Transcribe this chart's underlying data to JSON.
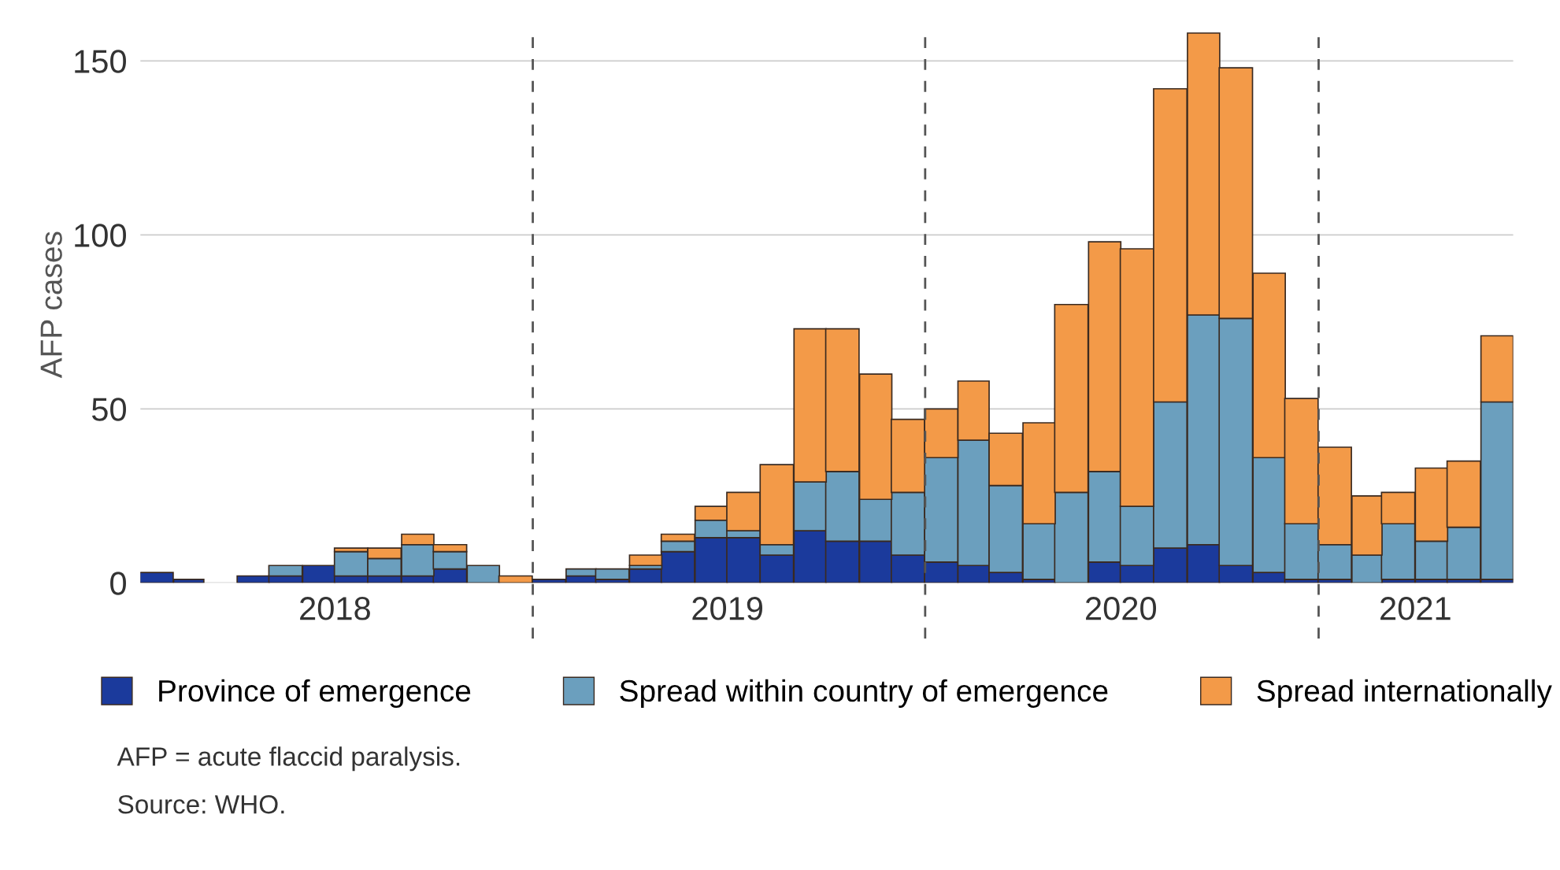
{
  "chart_data": {
    "type": "bar",
    "stacked": true,
    "ylabel": "AFP cases",
    "x": [
      "2018-01-16",
      "2018-02-15",
      "2018-03-16",
      "2018-04-16",
      "2018-05-16",
      "2018-06-16",
      "2018-07-16",
      "2018-08-16",
      "2018-09-16",
      "2018-10-16",
      "2018-11-16",
      "2018-12-16",
      "2019-01-16",
      "2019-02-15",
      "2019-03-16",
      "2019-04-16",
      "2019-05-16",
      "2019-06-16",
      "2019-07-16",
      "2019-08-16",
      "2019-09-16",
      "2019-10-16",
      "2019-11-16",
      "2019-12-16",
      "2020-01-16",
      "2020-02-15",
      "2020-03-16",
      "2020-04-16",
      "2020-05-16",
      "2020-06-16",
      "2020-07-16",
      "2020-08-16",
      "2020-09-16",
      "2020-10-16",
      "2020-11-16",
      "2020-12-16",
      "2021-01-16",
      "2021-02-15",
      "2021-03-16",
      "2021-04-16",
      "2021-05-16",
      "2021-06-16"
    ],
    "series": [
      {
        "name": "Province of emergence",
        "color": "#1b3a9c",
        "values": [
          3,
          1,
          0,
          2,
          2,
          5,
          2,
          2,
          2,
          4,
          0,
          0,
          1,
          2,
          1,
          4,
          9,
          13,
          13,
          8,
          15,
          12,
          12,
          8,
          6,
          5,
          3,
          1,
          0,
          6,
          5,
          10,
          11,
          5,
          3,
          1,
          1,
          0,
          1,
          1,
          1,
          1
        ]
      },
      {
        "name": "Spread within country of emergence",
        "color": "#6b9fbe",
        "values": [
          0,
          0,
          0,
          0,
          3,
          0,
          7,
          5,
          9,
          5,
          5,
          0,
          0,
          2,
          3,
          1,
          3,
          5,
          2,
          3,
          14,
          20,
          12,
          18,
          30,
          36,
          25,
          16,
          26,
          26,
          17,
          42,
          66,
          71,
          33,
          16,
          10,
          8,
          16,
          11,
          15,
          51
        ]
      },
      {
        "name": "Spread internationally",
        "color": "#f39a48",
        "values": [
          0,
          0,
          0,
          0,
          0,
          0,
          1,
          3,
          3,
          2,
          0,
          2,
          0,
          0,
          0,
          3,
          2,
          4,
          11,
          23,
          44,
          41,
          36,
          21,
          14,
          17,
          15,
          29,
          54,
          66,
          74,
          90,
          81,
          72,
          53,
          36,
          28,
          17,
          9,
          21,
          19,
          19
        ]
      }
    ],
    "xlim": [
      "2018-01",
      "2021-07"
    ],
    "xticks": [
      {
        "value": "2018-07",
        "label": "2018"
      },
      {
        "value": "2019-07",
        "label": "2019"
      },
      {
        "value": "2020-07",
        "label": "2020"
      },
      {
        "value": "2021-04",
        "label": "2021"
      }
    ],
    "ylim": [
      0,
      160
    ],
    "yticks": [
      0,
      50,
      100,
      150
    ],
    "grid": "y",
    "legend": "bottom",
    "ref_lines": [
      {
        "axis": "x",
        "value": "2019-01",
        "color": "#555555",
        "line_style": "dashed"
      },
      {
        "axis": "x",
        "value": "2020-01",
        "color": "#555555",
        "line_style": "dashed"
      },
      {
        "axis": "x",
        "value": "2021-01",
        "color": "#555555",
        "line_style": "dashed"
      }
    ],
    "annotations": [
      "AFP = acute flaccid paralysis.",
      "Source: WHO."
    ]
  }
}
